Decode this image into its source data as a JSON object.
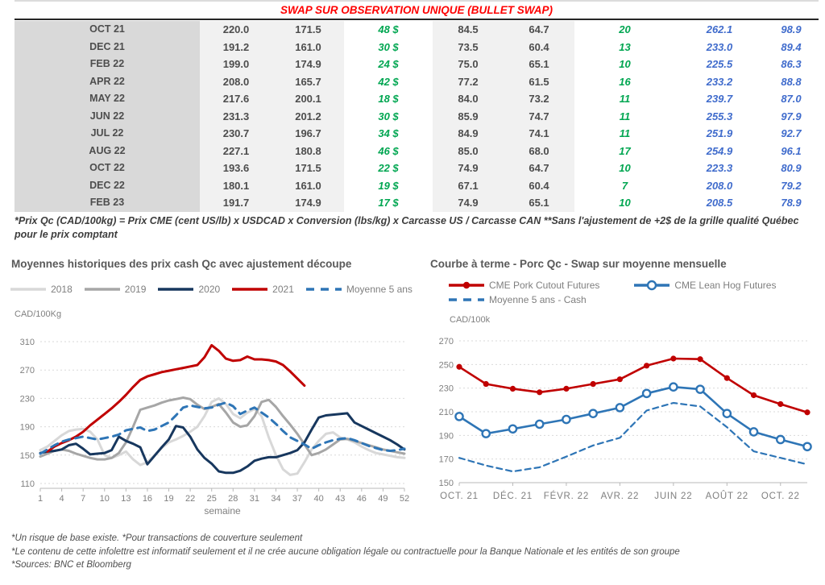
{
  "table": {
    "title": "SWAP SUR OBSERVATION UNIQUE (BULLET SWAP)",
    "rows": [
      {
        "month": "OCT 21",
        "cells": [
          "220.0",
          "171.5",
          "48 $",
          "84.5",
          "64.7",
          "20",
          "262.1",
          "98.9"
        ]
      },
      {
        "month": "DEC 21",
        "cells": [
          "191.2",
          "161.0",
          "30 $",
          "73.5",
          "60.4",
          "13",
          "233.0",
          "89.4"
        ]
      },
      {
        "month": "FEB 22",
        "cells": [
          "199.0",
          "174.9",
          "24 $",
          "75.0",
          "65.1",
          "10",
          "225.5",
          "86.3"
        ]
      },
      {
        "month": "APR 22",
        "cells": [
          "208.0",
          "165.7",
          "42 $",
          "77.2",
          "61.5",
          "16",
          "233.2",
          "88.8"
        ]
      },
      {
        "month": "MAY 22",
        "cells": [
          "217.6",
          "200.1",
          "18 $",
          "84.0",
          "73.2",
          "11",
          "239.7",
          "87.0"
        ]
      },
      {
        "month": "JUN 22",
        "cells": [
          "231.3",
          "201.2",
          "30 $",
          "85.9",
          "74.7",
          "11",
          "255.3",
          "97.9"
        ]
      },
      {
        "month": "JUL 22",
        "cells": [
          "230.7",
          "196.7",
          "34 $",
          "84.9",
          "74.1",
          "11",
          "251.9",
          "92.7"
        ]
      },
      {
        "month": "AUG 22",
        "cells": [
          "227.1",
          "180.8",
          "46 $",
          "85.0",
          "68.0",
          "17",
          "254.9",
          "96.1"
        ]
      },
      {
        "month": "OCT 22",
        "cells": [
          "193.6",
          "171.5",
          "22 $",
          "74.9",
          "64.7",
          "10",
          "223.3",
          "80.9"
        ]
      },
      {
        "month": "DEC 22",
        "cells": [
          "180.1",
          "161.0",
          "19 $",
          "67.1",
          "60.4",
          "7",
          "208.0",
          "79.2"
        ]
      },
      {
        "month": "FEB 23",
        "cells": [
          "191.7",
          "174.9",
          "17 $",
          "74.9",
          "65.1",
          "10",
          "208.5",
          "78.9"
        ]
      }
    ],
    "footnote": "*Prix Qc (CAD/100kg) = Prix CME (cent US/lb) x USDCAD x Conversion (lbs/kg) x Carcasse US / Carcasse CAN **Sans l'ajustement de +2$ de la grille qualité Québec pour le prix comptant"
  },
  "colors": {
    "title_red": "#ff0000",
    "table_green": "#00a651",
    "table_blue": "#3f6bcc",
    "red_series": "#c00000",
    "blue_series": "#2e75b6",
    "navy_series": "#17375e",
    "gray_series": "#a6a6a6",
    "lightgray_series": "#d8d8d8"
  },
  "chart_data": [
    {
      "id": "historical",
      "type": "line",
      "title": "Moyennes historiques des prix cash Qc avec ajustement découpe",
      "ylabel": "CAD/100Kg",
      "xlabel": "semaine",
      "ylim": [
        110,
        310
      ],
      "yticks": [
        110,
        150,
        190,
        230,
        270,
        310
      ],
      "xticks": [
        1,
        4,
        7,
        10,
        13,
        16,
        19,
        22,
        25,
        28,
        31,
        34,
        37,
        40,
        43,
        46,
        49,
        52
      ],
      "x_count": 52,
      "grid": "dashed",
      "legend_position": "top",
      "series": [
        {
          "name": "2018",
          "color": "#d8d8d8",
          "width": 3,
          "values": [
            157,
            162,
            170,
            178,
            184,
            186,
            187,
            183,
            172,
            150,
            146,
            150,
            155,
            144,
            136,
            140,
            150,
            160,
            168,
            172,
            177,
            183,
            190,
            205,
            225,
            230,
            222,
            208,
            202,
            210,
            215,
            205,
            175,
            150,
            130,
            122,
            124,
            140,
            158,
            170,
            180,
            182,
            175,
            172,
            168,
            162,
            157,
            153,
            151,
            149,
            147,
            146
          ]
        },
        {
          "name": "2019",
          "color": "#a6a6a6",
          "width": 3,
          "values": [
            148,
            152,
            156,
            158,
            156,
            152,
            149,
            146,
            144,
            144,
            146,
            153,
            168,
            190,
            214,
            217,
            220,
            224,
            227,
            229,
            231,
            229,
            221,
            215,
            218,
            222,
            210,
            196,
            190,
            192,
            205,
            225,
            228,
            218,
            205,
            193,
            180,
            165,
            150,
            153,
            158,
            165,
            172,
            173,
            170,
            167,
            164,
            161,
            158,
            156,
            154,
            152
          ]
        },
        {
          "name": "2020",
          "color": "#17375e",
          "width": 3,
          "values": [
            153,
            155,
            156,
            158,
            164,
            166,
            159,
            151,
            152,
            153,
            157,
            176,
            170,
            166,
            161,
            137,
            149,
            161,
            172,
            191,
            189,
            176,
            158,
            146,
            138,
            127,
            125,
            125,
            128,
            134,
            142,
            145,
            147,
            147,
            150,
            153,
            157,
            168,
            186,
            203,
            206,
            207,
            208,
            209,
            196,
            191,
            186,
            181,
            176,
            171,
            165,
            158
          ]
        },
        {
          "name": "2021",
          "color": "#c00000",
          "width": 3,
          "values": [
            null,
            155,
            162,
            167,
            171,
            176,
            183,
            192,
            200,
            208,
            216,
            225,
            235,
            246,
            256,
            261,
            264,
            267,
            269,
            271,
            273,
            275,
            277,
            288,
            305,
            297,
            286,
            283,
            284,
            289,
            285,
            285,
            284,
            282,
            277,
            268,
            258,
            248,
            null,
            null,
            null,
            null,
            null,
            null,
            null,
            null,
            null,
            null,
            null,
            null,
            null,
            null
          ]
        },
        {
          "name": "Moyenne 5 ans",
          "color": "#2e75b6",
          "width": 3,
          "dash": "9 7",
          "values": [
            152,
            158,
            164,
            169,
            172,
            174,
            176,
            174,
            172,
            174,
            176,
            179,
            185,
            187,
            189,
            184,
            186,
            191,
            196,
            206,
            217,
            220,
            218,
            216,
            217,
            221,
            224,
            219,
            208,
            213,
            217,
            210,
            203,
            194,
            184,
            175,
            170,
            165,
            159,
            164,
            168,
            171,
            173,
            174,
            171,
            167,
            163,
            160,
            157,
            156,
            157,
            159
          ]
        }
      ]
    },
    {
      "id": "forward",
      "type": "line",
      "title": "Courbe à terme - Porc Qc - Swap sur moyenne mensuelle",
      "ylabel": "CAD/100k",
      "xlabel": "",
      "ylim": [
        150,
        270
      ],
      "yticks": [
        150,
        170,
        190,
        210,
        230,
        250,
        270
      ],
      "xtick_labels": [
        "OCT. 21",
        "DÉC. 21",
        "FÉVR. 22",
        "AVR. 22",
        "JUIN 22",
        "AOÛT 22",
        "OCT. 22"
      ],
      "xtick_indices": [
        0,
        2,
        4,
        6,
        8,
        10,
        12
      ],
      "x_count": 14,
      "grid": "dashed",
      "legend_position": "top",
      "series": [
        {
          "name": "CME Pork Cutout Futures",
          "color": "#c00000",
          "width": 2.6,
          "marker": "dot",
          "values": [
            248,
            233.5,
            229.5,
            226.5,
            229.5,
            233.5,
            237.5,
            249,
            255,
            254.5,
            238.5,
            224,
            216.5,
            209.5
          ]
        },
        {
          "name": "CME Lean Hog Futures",
          "color": "#2e75b6",
          "width": 2.6,
          "marker": "circle",
          "values": [
            206,
            191.5,
            195.5,
            199.5,
            203.5,
            208.5,
            213.5,
            225.5,
            231,
            229,
            208.5,
            193,
            186.5,
            180.5
          ]
        },
        {
          "name": "Moyenne 5 ans - Cash",
          "color": "#2e75b6",
          "width": 2.2,
          "dash": "7 5",
          "values": [
            171,
            164.5,
            159.5,
            163,
            172,
            181.5,
            188,
            211,
            217.5,
            214.5,
            197,
            176.5,
            171,
            165.5
          ]
        }
      ]
    }
  ],
  "footnotes": [
    "*Un risque de base existe. *Pour transactions de couverture seulement",
    "*Le contenu de cette infolettre est informatif seulement et il ne crée aucune obligation légale ou contractuelle pour la Banque Nationale et les entités de son groupe",
    "*Sources: BNC et Bloomberg"
  ]
}
